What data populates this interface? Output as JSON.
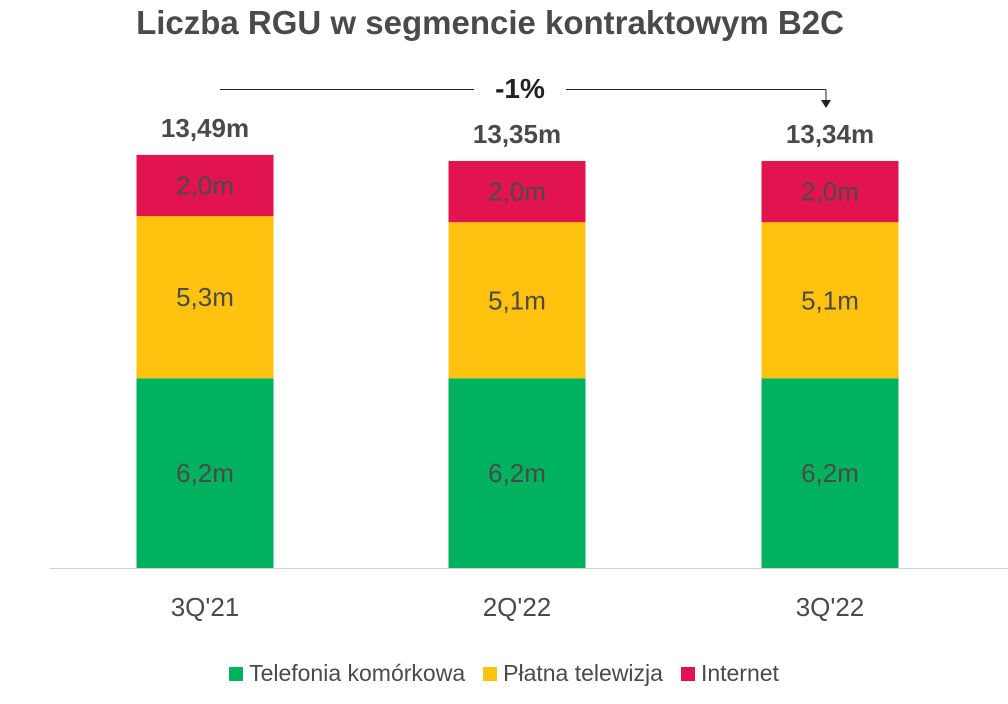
{
  "title": "Liczba RGU w segmencie kontraktowym B2C",
  "change_label": "-1%",
  "colors": {
    "mobile": "#00b25d",
    "tv": "#ffc20e",
    "internet": "#e2144f"
  },
  "chart_data": {
    "type": "bar",
    "stacked": true,
    "categories": [
      "3Q'21",
      "2Q'22",
      "3Q'22"
    ],
    "totals": [
      "13,49m",
      "13,35m",
      "13,34m"
    ],
    "total_values": [
      13.49,
      13.35,
      13.34
    ],
    "series": [
      {
        "name": "Telefonia komórkowa",
        "values": [
          6.2,
          6.2,
          6.2
        ],
        "labels": [
          "6,2m",
          "6,2m",
          "6,2m"
        ],
        "color": "#00b25d"
      },
      {
        "name": "Płatna telewizja",
        "values": [
          5.3,
          5.1,
          5.1
        ],
        "labels": [
          "5,3m",
          "5,1m",
          "5,1m"
        ],
        "color": "#ffc20e"
      },
      {
        "name": "Internet",
        "values": [
          2.0,
          2.0,
          2.0
        ],
        "labels": [
          "2,0m",
          "2,0m",
          "2,0m"
        ],
        "color": "#e2144f"
      }
    ],
    "legend_position": "bottom"
  }
}
